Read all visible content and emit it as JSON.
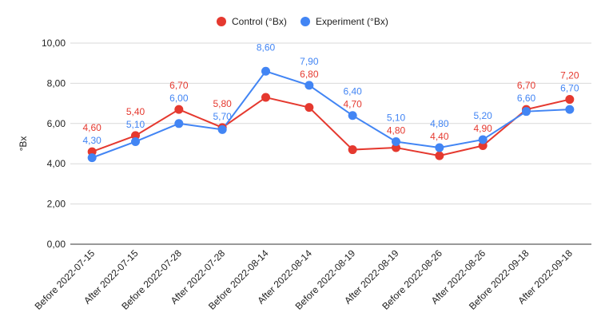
{
  "chart_data": {
    "type": "line",
    "title": "",
    "xlabel": "",
    "ylabel": "°Bx",
    "ylim": [
      0,
      10
    ],
    "yticks": [
      "0,00",
      "2,00",
      "4,00",
      "6,00",
      "8,00",
      "10,00"
    ],
    "grid": true,
    "legend_position": "top-center",
    "categories": [
      "Before 2022-07-15",
      "After 2022-07-15",
      "Before 2022-07-28",
      "After 2022-07-28",
      "Before 2022-08-14",
      "After 2022-08-14",
      "Before 2022-08-19",
      "After 2022-08-19",
      "Before 2022-08-26",
      "After 2022-08-26",
      "Before 2022-09-18",
      "After 2022-09-18"
    ],
    "series": [
      {
        "name": "Control (°Bx)",
        "color": "#e5392f",
        "values": [
          4.6,
          5.4,
          6.7,
          5.8,
          7.3,
          6.8,
          4.7,
          4.8,
          4.4,
          4.9,
          6.7,
          7.2
        ],
        "labels": [
          "4,60",
          "5,40",
          "6,70",
          "5,80",
          "",
          "6,80",
          "4,70",
          "4,80",
          "4,40",
          "4,90",
          "6,70",
          "7,20"
        ]
      },
      {
        "name": "Experiment (°Bx)",
        "color": "#4285f4",
        "values": [
          4.3,
          5.1,
          6.0,
          5.7,
          8.6,
          7.9,
          6.4,
          5.1,
          4.8,
          5.2,
          6.6,
          6.7
        ],
        "labels": [
          "4,30",
          "5,10",
          "6,00",
          "5,70",
          "8,60",
          "7,90",
          "6,40",
          "5,10",
          "4,80",
          "5,20",
          "6,60",
          "6,70"
        ]
      }
    ]
  }
}
